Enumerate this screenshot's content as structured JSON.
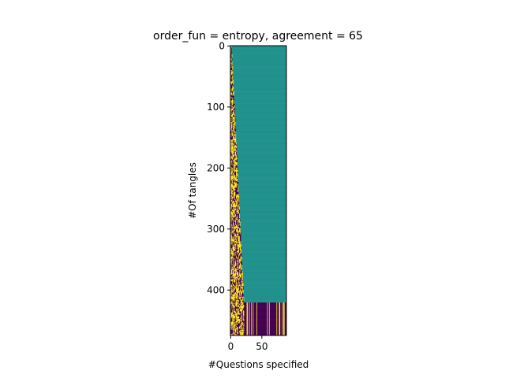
{
  "chart_data": {
    "type": "heatmap",
    "title": "order_fun = entropy, agreement = 65",
    "xlabel": "#Questions specified",
    "ylabel": "#Of tangles",
    "xlim": [
      -0.5,
      89.5
    ],
    "ylim": [
      474.5,
      -0.5
    ],
    "x_ticks": [
      0,
      50
    ],
    "y_ticks": [
      0,
      100,
      200,
      300,
      400
    ],
    "rows": 475,
    "cols": 90,
    "values_legend": {
      "0": "unspecified",
      "1": "answer no",
      "-1": "answer yes"
    },
    "colors": {
      "unspecified": "#21918c",
      "no": "#440154",
      "yes": "#fde725",
      "axes": "#000000",
      "background": "#ffffff"
    },
    "colormap": "viridis",
    "structure": {
      "specified_columns_at_row_0": 2,
      "specified_columns_at_row_420": 22,
      "fully_specified_from_row": 421
    }
  }
}
